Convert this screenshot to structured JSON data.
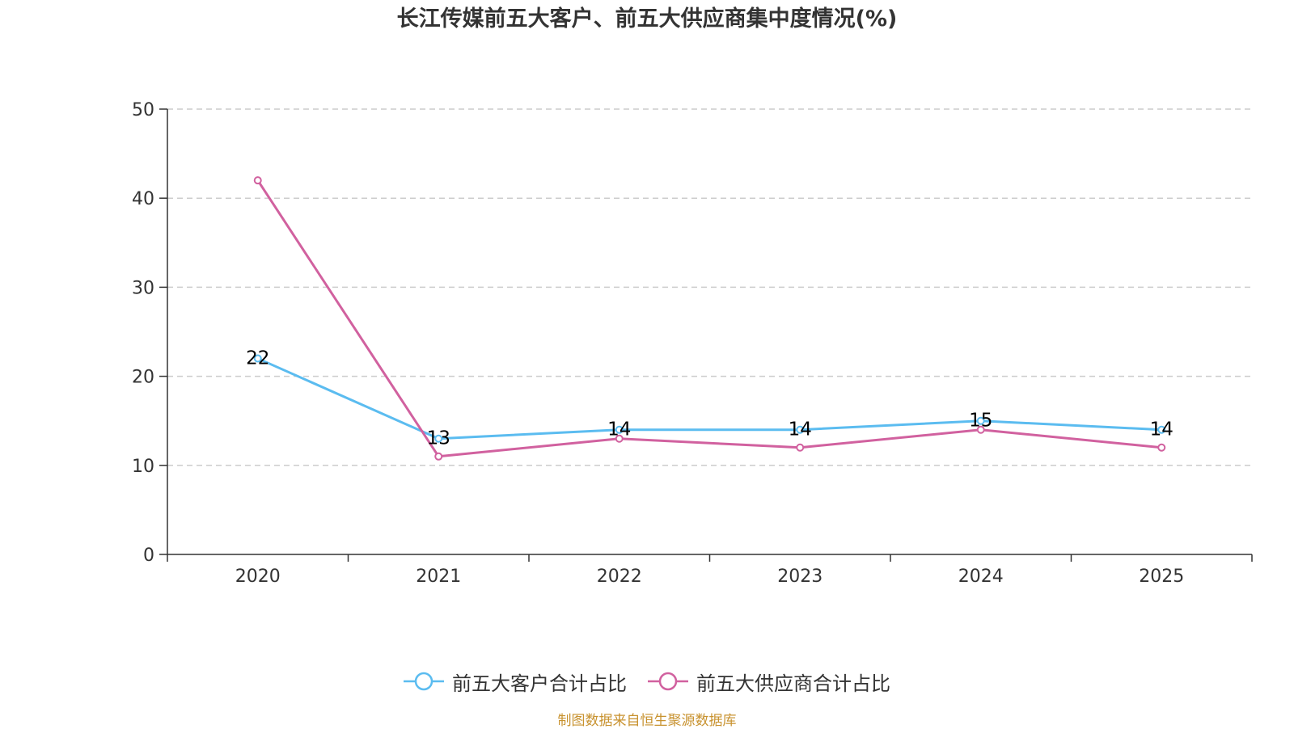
{
  "chart_data": {
    "type": "line",
    "title": "长江传媒前五大客户、前五大供应商集中度情况(%)",
    "xlabel": "",
    "ylabel": "",
    "categories": [
      "2020",
      "2021",
      "2022",
      "2023",
      "2024",
      "2025"
    ],
    "ylim": [
      0,
      50
    ],
    "yticks": [
      "0",
      "10",
      "20",
      "30",
      "40",
      "50"
    ],
    "grid": true,
    "legend_position": "bottom-center",
    "series": [
      {
        "name": "前五大客户合计占比",
        "color": "#5bbcf0",
        "values": [
          22,
          13,
          14,
          14,
          15,
          14
        ],
        "labels": [
          "22",
          "13",
          "14",
          "14",
          "15",
          "14"
        ]
      },
      {
        "name": "前五大供应商合计占比",
        "color": "#d1619f",
        "values": [
          42,
          11,
          13,
          12,
          14,
          12
        ]
      }
    ]
  },
  "footer": {
    "source": "制图数据来自恒生聚源数据库"
  }
}
